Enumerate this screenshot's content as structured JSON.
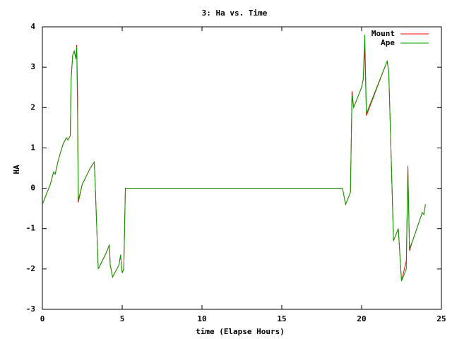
{
  "chart_data": {
    "type": "line",
    "title": "3: Ha vs. Time",
    "xlabel": "time (Elapse Hours)",
    "ylabel": "HA",
    "x": [
      0,
      0.5,
      0.7,
      0.8,
      1.0,
      1.3,
      1.5,
      1.6,
      1.75,
      1.8,
      1.9,
      2.0,
      2.1,
      2.15,
      2.2,
      2.25,
      2.5,
      3.0,
      3.25,
      3.3,
      3.5,
      4.0,
      4.2,
      4.25,
      4.4,
      4.8,
      4.9,
      5.0,
      5.1,
      5.2,
      18.8,
      19.0,
      19.3,
      19.4,
      19.5,
      20.0,
      20.1,
      20.2,
      20.3,
      21.6,
      21.7,
      22.0,
      22.3,
      22.5,
      22.8,
      22.9,
      23.0,
      23.2,
      23.8,
      23.9,
      24.0
    ],
    "series": [
      {
        "name": "Mount",
        "color": "#ff0000",
        "values": [
          -0.4,
          0.1,
          0.4,
          0.35,
          0.7,
          1.1,
          1.25,
          1.2,
          1.3,
          2.7,
          3.3,
          3.4,
          3.2,
          3.55,
          2.5,
          -0.35,
          0.1,
          0.5,
          0.65,
          0.2,
          -2.0,
          -1.6,
          -1.4,
          -1.9,
          -2.2,
          -1.9,
          -1.65,
          -2.1,
          -2.0,
          0.0,
          0.0,
          -0.4,
          -0.1,
          2.4,
          2.0,
          2.5,
          2.7,
          3.5,
          1.8,
          3.15,
          2.9,
          -1.3,
          -1.0,
          -2.3,
          -1.8,
          0.55,
          -1.55,
          -1.3,
          -0.6,
          -0.65,
          -0.4
        ]
      },
      {
        "name": "Ape",
        "color": "#00a000",
        "values": [
          -0.4,
          0.1,
          0.4,
          0.35,
          0.7,
          1.1,
          1.25,
          1.2,
          1.3,
          2.7,
          3.3,
          3.4,
          3.2,
          3.5,
          2.0,
          -0.3,
          0.1,
          0.5,
          0.65,
          0.2,
          -2.0,
          -1.6,
          -1.4,
          -1.9,
          -2.2,
          -1.9,
          -1.65,
          -2.1,
          -2.0,
          0.0,
          0.0,
          -0.4,
          -0.1,
          2.3,
          2.0,
          2.5,
          2.7,
          3.8,
          1.85,
          3.15,
          2.9,
          -1.3,
          -1.0,
          -2.3,
          -2.0,
          0.5,
          -1.5,
          -1.3,
          -0.6,
          -0.65,
          -0.4
        ]
      }
    ],
    "xlim": [
      0,
      25
    ],
    "xticks": [
      0,
      5,
      10,
      15,
      20,
      25
    ],
    "ylim": [
      -3,
      4
    ],
    "yticks": [
      -3,
      -2,
      -1,
      0,
      1,
      2,
      3,
      4
    ],
    "legend": "upper right"
  }
}
